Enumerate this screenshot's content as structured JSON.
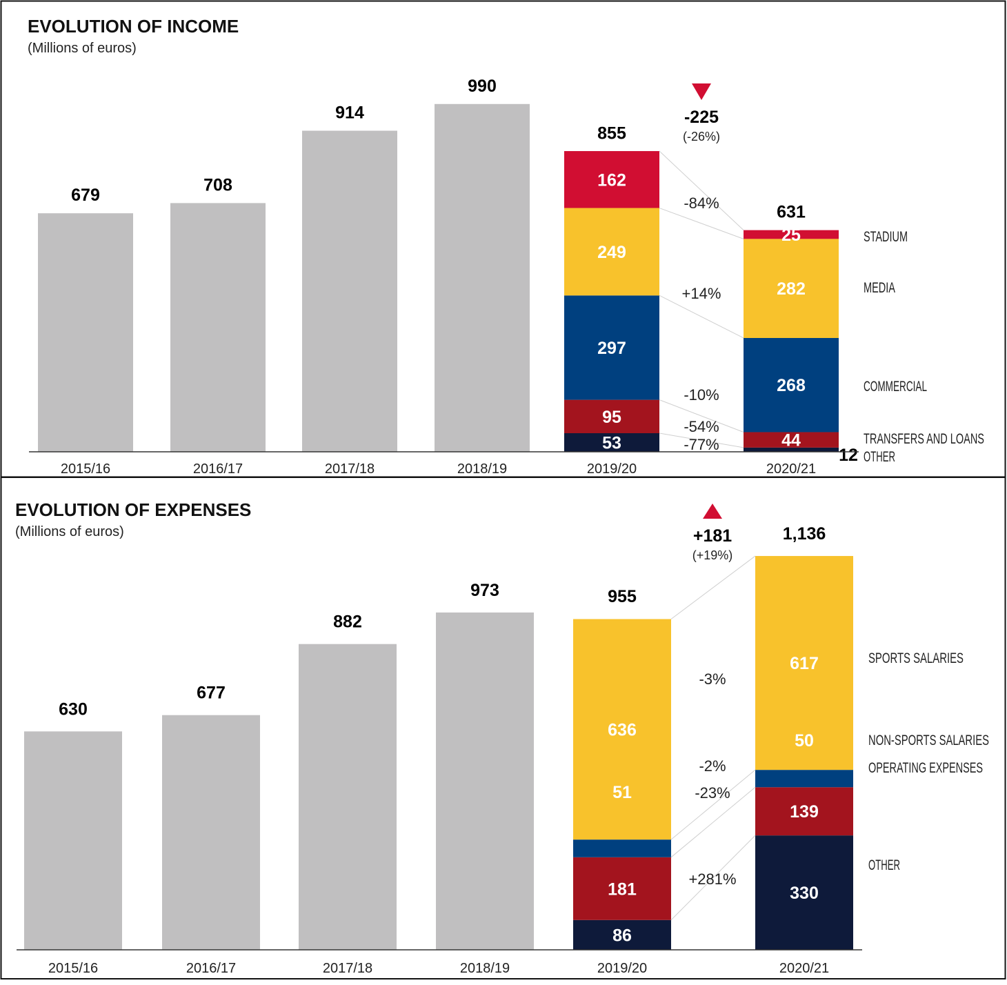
{
  "chart_data": [
    {
      "type": "bar",
      "title": "EVOLUTION OF INCOME",
      "subtitle": "(Millions of euros)",
      "categories": [
        "2015/16",
        "2016/17",
        "2017/18",
        "2018/19",
        "2019/20",
        "2020/21"
      ],
      "totals": [
        679,
        708,
        914,
        990,
        855,
        631
      ],
      "breakdown": {
        "categories": [
          "2019/20",
          "2020/21"
        ],
        "series": [
          {
            "name": "OTHER",
            "color": "#0e1a3a",
            "values": [
              53,
              12
            ],
            "change": "-77%"
          },
          {
            "name": "TRANSFERS AND LOANS",
            "color": "#a3141e",
            "values": [
              95,
              44
            ],
            "change": "-54%"
          },
          {
            "name": "COMMERCIAL",
            "color": "#00407f",
            "values": [
              297,
              268
            ],
            "change": "-10%"
          },
          {
            "name": "MEDIA",
            "color": "#f8c22c",
            "values": [
              249,
              282
            ],
            "change": "+14%"
          },
          {
            "name": "STADIUM",
            "color": "#d10e32",
            "values": [
              162,
              25
            ],
            "change": "-84%"
          }
        ]
      },
      "change_total": {
        "value": "-225",
        "percent": "(-26%)",
        "direction": "down"
      },
      "bar_color": "#c0bfc0"
    },
    {
      "type": "bar",
      "title": "EVOLUTION OF EXPENSES",
      "subtitle": "(Millions of euros)",
      "categories": [
        "2015/16",
        "2016/17",
        "2017/18",
        "2018/19",
        "2019/20",
        "2020/21"
      ],
      "totals": [
        630,
        677,
        882,
        973,
        955,
        "1,136"
      ],
      "breakdown": {
        "categories": [
          "2019/20",
          "2020/21"
        ],
        "series": [
          {
            "name": "OTHER",
            "color": "#0e1a3a",
            "values": [
              86,
              330
            ],
            "change": "+281%"
          },
          {
            "name": "OPERATING EXPENSES",
            "color": "#a3141e",
            "values": [
              181,
              139
            ],
            "change": "-23%"
          },
          {
            "name": "NON-SPORTS SALARIES",
            "color": "#00407f",
            "values": [
              51,
              50
            ],
            "change": "-2%"
          },
          {
            "name": "SPORTS SALARIES",
            "color": "#f8c22c",
            "values": [
              636,
              617
            ],
            "change": "-3%"
          }
        ]
      },
      "change_total": {
        "value": "+181",
        "percent": "(+19%)",
        "direction": "up"
      },
      "bar_color": "#c0bfc0"
    }
  ]
}
